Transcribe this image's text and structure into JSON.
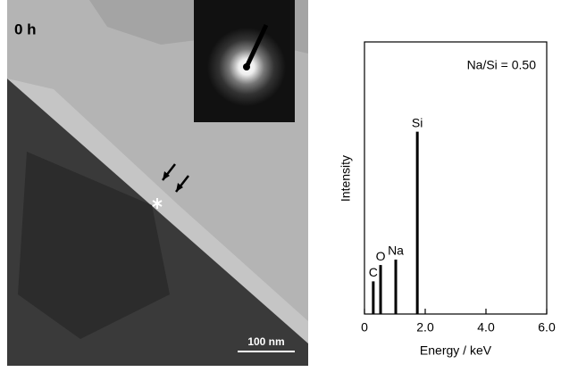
{
  "image": {
    "label": "0 h",
    "scale_bar": "100 nm"
  },
  "chart_data": {
    "type": "spectrum",
    "annotation": "Na/Si = 0.50",
    "x_label": "Energy / keV",
    "y_label": "Intensity",
    "x": [
      0.29,
      0.53,
      1.03,
      1.74
    ],
    "values": [
      12,
      18,
      20,
      67
    ],
    "labels": [
      "C",
      "O",
      "Na",
      "Si"
    ],
    "color": "#000000",
    "xlim": [
      0,
      6
    ],
    "xticks": [
      0,
      {
        "value": 2,
        "label": "2.0"
      },
      {
        "value": 4,
        "label": "4.0"
      },
      {
        "value": 6,
        "label": "6.0"
      }
    ],
    "ylim": [
      0,
      100
    ]
  }
}
